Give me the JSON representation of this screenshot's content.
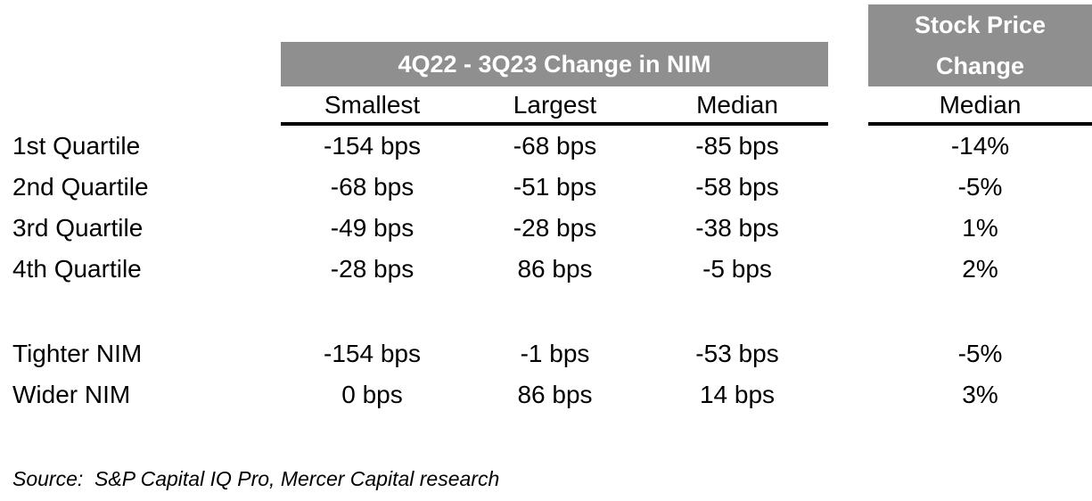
{
  "figure": {
    "nim_header": {
      "title": "4Q22 - 3Q23 Change in NIM"
    },
    "stock_header": {
      "title": "Stock Price Change"
    },
    "columns": {
      "smallest": "Smallest",
      "largest": "Largest",
      "median": "Median",
      "stock_median": "Median"
    },
    "rows": [
      {
        "label": "1st Quartile",
        "smallest": "-154 bps",
        "largest": "-68 bps",
        "median": "-85 bps",
        "stock": "-14%"
      },
      {
        "label": "2nd Quartile",
        "smallest": "-68 bps",
        "largest": "-51 bps",
        "median": "-58 bps",
        "stock": "-5%"
      },
      {
        "label": "3rd Quartile",
        "smallest": "-49 bps",
        "largest": "-28 bps",
        "median": "-38 bps",
        "stock": "1%"
      },
      {
        "label": "4th Quartile",
        "smallest": "-28 bps",
        "largest": "86 bps",
        "median": "-5 bps",
        "stock": "2%"
      },
      {
        "label": "Tighter NIM",
        "smallest": "-154 bps",
        "largest": "-1 bps",
        "median": "-53 bps",
        "stock": "-5%"
      },
      {
        "label": "Wider NIM",
        "smallest": "0 bps",
        "largest": "86 bps",
        "median": "14 bps",
        "stock": "3%"
      }
    ],
    "source": "Source:  S&P Capital IQ Pro, Mercer Capital research",
    "colors": {
      "header_gray": "#8f8f8f",
      "text": "#000000",
      "background": "#ffffff"
    }
  },
  "chart_data": {
    "type": "table",
    "title": "4Q22 - 3Q23 Change in NIM",
    "categories": [
      "1st Quartile",
      "2nd Quartile",
      "3rd Quartile",
      "4th Quartile",
      "Tighter NIM",
      "Wider NIM"
    ],
    "series": [
      {
        "name": "Smallest (bps)",
        "values": [
          -154,
          -68,
          -49,
          -28,
          -154,
          0
        ]
      },
      {
        "name": "Largest (bps)",
        "values": [
          -68,
          -51,
          -28,
          86,
          -1,
          86
        ]
      },
      {
        "name": "Median (bps)",
        "values": [
          -85,
          -58,
          -38,
          -5,
          -53,
          14
        ]
      },
      {
        "name": "Stock Price Change Median (%)",
        "values": [
          -14,
          -5,
          1,
          2,
          -5,
          3
        ]
      }
    ],
    "source": "S&P Capital IQ Pro, Mercer Capital research"
  }
}
